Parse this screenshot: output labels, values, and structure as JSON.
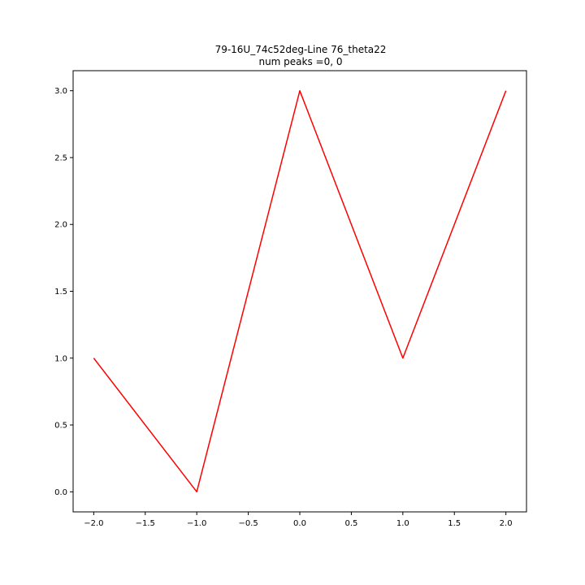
{
  "chart_data": {
    "type": "line",
    "title": "79-16U_74c52deg-Line 76_theta22",
    "subtitle": "num peaks =0, 0",
    "xlabel": "",
    "ylabel": "",
    "xlim": [
      -2.2,
      2.2
    ],
    "ylim": [
      -0.15,
      3.15
    ],
    "xticks": [
      -2.0,
      -1.5,
      -1.0,
      -0.5,
      0.0,
      0.5,
      1.0,
      1.5,
      2.0
    ],
    "xtick_labels": [
      "−2.0",
      "−1.5",
      "−1.0",
      "−0.5",
      "0.0",
      "0.5",
      "1.0",
      "1.5",
      "2.0"
    ],
    "yticks": [
      0.0,
      0.5,
      1.0,
      1.5,
      2.0,
      2.5,
      3.0
    ],
    "ytick_labels": [
      "0.0",
      "0.5",
      "1.0",
      "1.5",
      "2.0",
      "2.5",
      "3.0"
    ],
    "grid": false,
    "series": [
      {
        "color": "#ff0000",
        "x": [
          -2,
          -1,
          0,
          1,
          2
        ],
        "y": [
          1,
          0,
          3,
          1,
          3
        ]
      }
    ]
  }
}
